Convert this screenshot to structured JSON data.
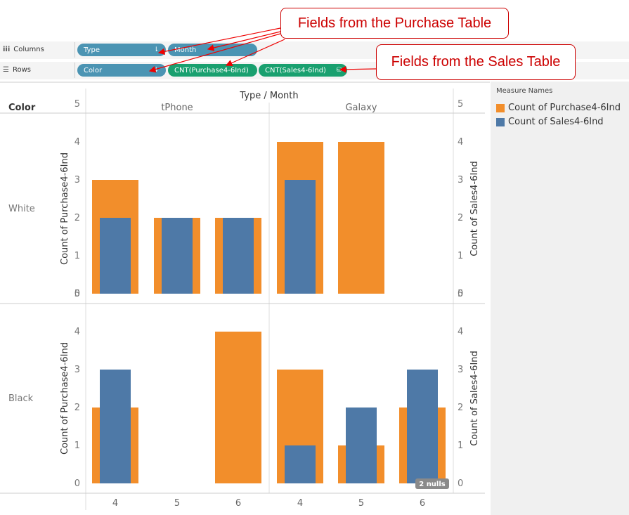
{
  "shelves": {
    "columns": {
      "label": "Columns",
      "icon": "columns-icon",
      "pills": [
        {
          "label": "Type",
          "color": "#4b94b3",
          "sorted": true
        },
        {
          "label": "Month",
          "color": "#4b94b3",
          "sorted": false
        }
      ]
    },
    "rows": {
      "label": "Rows",
      "icon": "rows-icon",
      "pills": [
        {
          "label": "Color",
          "color": "#4b94b3",
          "sorted": true
        },
        {
          "label": "CNT(Purchase4-6Ind)",
          "color": "#19a06f"
        },
        {
          "label": "CNT(Sales4-6Ind)",
          "color": "#19a06f",
          "secondary_source": true
        }
      ]
    }
  },
  "callouts": {
    "purchase": "Fields from the Purchase Table",
    "sales": "Fields from the Sales Table"
  },
  "legend": {
    "title": "Measure Names",
    "items": [
      {
        "label": "Count of Purchase4-6Ind",
        "color": "#f28e2b"
      },
      {
        "label": "Count of Sales4-6Ind",
        "color": "#4e79a7"
      }
    ]
  },
  "chart_data": {
    "type": "bar",
    "title": "Type / Month",
    "row_header": "Color",
    "column_groups": [
      "tPhone",
      "Galaxy"
    ],
    "row_groups": [
      "White",
      "Black"
    ],
    "x_categories": [
      "4",
      "5",
      "6"
    ],
    "ylabel_left": "Count of Purchase4-6Ind",
    "ylabel_right": "Count of Sales4-6Ind",
    "ylim": [
      0,
      5
    ],
    "yticks": [
      0,
      1,
      2,
      3,
      4,
      5
    ],
    "null_indicator": "2 nulls",
    "series": [
      {
        "name": "Count of Purchase4-6Ind",
        "color": "#f28e2b",
        "values": {
          "White": {
            "tPhone": [
              3,
              2,
              2
            ],
            "Galaxy": [
              4,
              4,
              null
            ]
          },
          "Black": {
            "tPhone": [
              2,
              null,
              4
            ],
            "Galaxy": [
              3,
              1,
              2
            ]
          }
        }
      },
      {
        "name": "Count of Sales4-6Ind",
        "color": "#4e79a7",
        "values": {
          "White": {
            "tPhone": [
              2,
              2,
              2
            ],
            "Galaxy": [
              3,
              null,
              null
            ]
          },
          "Black": {
            "tPhone": [
              3,
              null,
              null
            ],
            "Galaxy": [
              1,
              2,
              3
            ]
          }
        }
      }
    ]
  }
}
